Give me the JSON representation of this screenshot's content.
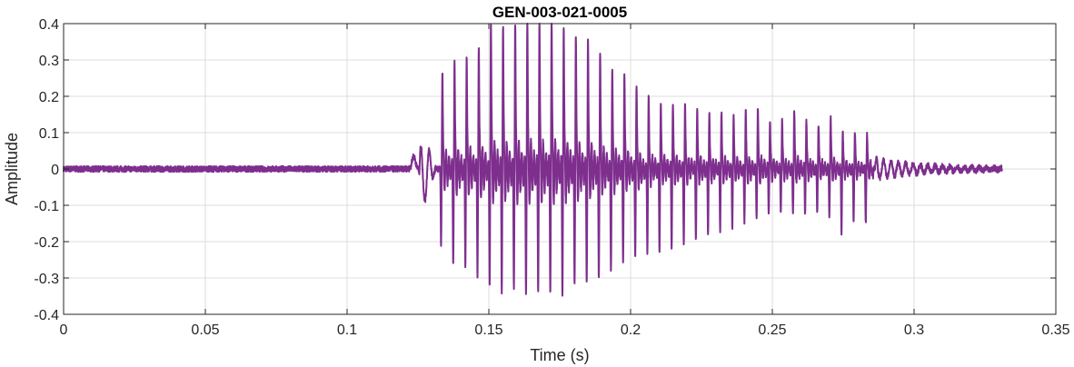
{
  "chart_data": {
    "type": "line",
    "title": "GEN-003-021-0005",
    "xlabel": "Time (s)",
    "ylabel": "Amplitude",
    "xlim": [
      0,
      0.35
    ],
    "ylim": [
      -0.4,
      0.4
    ],
    "xticks": [
      "0",
      "0.05",
      "0.1",
      "0.15",
      "0.2",
      "0.25",
      "0.3",
      "0.35"
    ],
    "yticks": [
      "-0.4",
      "-0.3",
      "-0.2",
      "-0.1",
      "0",
      "0.1",
      "0.2",
      "0.3",
      "0.4"
    ],
    "grid": true,
    "line_color": "#7E2F8E",
    "signal_end_time": 0.331,
    "pre_voicing_noise_amplitude": 0.008,
    "onset": {
      "bump_time": 0.1235,
      "bump_value": 0.035,
      "dip_time": 0.1265,
      "dip_value": -0.06
    },
    "pulses": {
      "first_peak_time": 0.1336,
      "period": 0.00428,
      "peak_values": [
        0.26,
        0.29,
        0.3,
        0.33,
        0.39,
        0.38,
        0.39,
        0.4,
        0.4,
        0.4,
        0.38,
        0.36,
        0.35,
        0.31,
        0.265,
        0.25,
        0.22,
        0.19,
        0.175,
        0.175,
        0.17,
        0.16,
        0.15,
        0.15,
        0.14,
        0.16,
        0.16,
        0.13,
        0.13,
        0.155,
        0.13,
        0.12,
        0.135,
        0.1,
        0.1,
        0.095
      ],
      "trough_values": [
        -0.21,
        -0.25,
        -0.25,
        -0.28,
        -0.31,
        -0.315,
        -0.31,
        -0.33,
        -0.32,
        -0.32,
        -0.33,
        -0.295,
        -0.295,
        -0.285,
        -0.265,
        -0.245,
        -0.23,
        -0.225,
        -0.225,
        -0.215,
        -0.2,
        -0.19,
        -0.175,
        -0.16,
        -0.155,
        -0.135,
        -0.13,
        -0.11,
        -0.11,
        -0.115,
        -0.12,
        -0.115,
        -0.125,
        -0.175,
        -0.14,
        -0.145
      ]
    }
  }
}
